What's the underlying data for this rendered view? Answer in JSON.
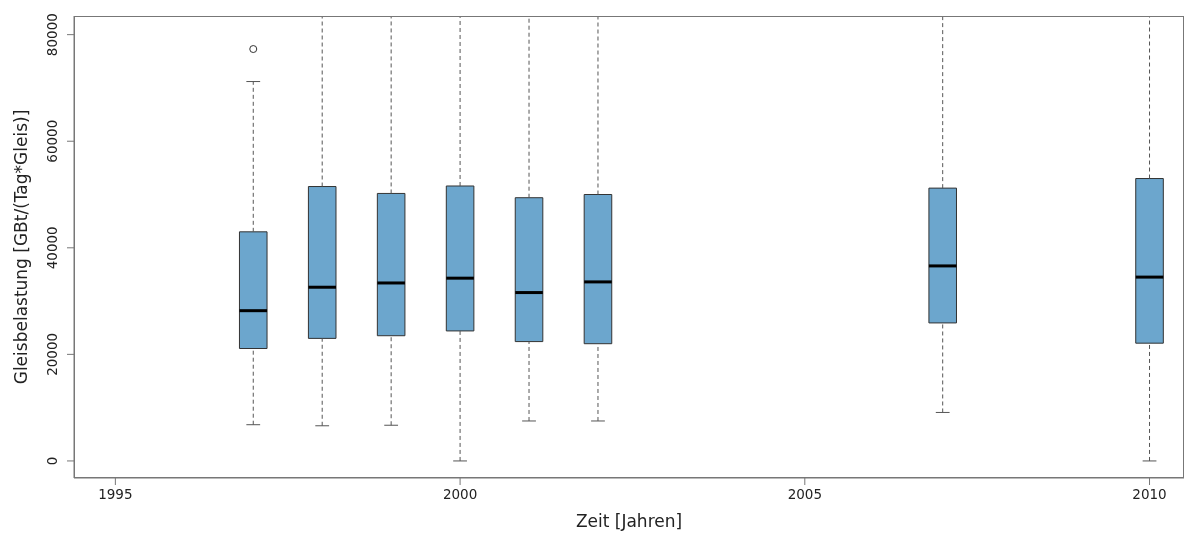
{
  "chart_data": {
    "type": "box",
    "xlabel": "Zeit [Jahren]",
    "ylabel": "Gleisbelastung [GBt/(Tag*Gleis)]",
    "x": [
      1997,
      1998,
      1999,
      2000,
      2001,
      2002,
      2007,
      2010
    ],
    "boxes": [
      {
        "low": 6800,
        "q1": 21100,
        "median": 28200,
        "q3": 43000,
        "high": 71200,
        "outliers": [
          77300
        ]
      },
      {
        "low": 6600,
        "q1": 23000,
        "median": 32600,
        "q3": 51500,
        "high": 83500
      },
      {
        "low": 6700,
        "q1": 23500,
        "median": 33400,
        "q3": 50200,
        "high": 83500
      },
      {
        "low": 0,
        "q1": 24400,
        "median": 34300,
        "q3": 51600,
        "high": 83500
      },
      {
        "low": 7500,
        "q1": 22400,
        "median": 31600,
        "q3": 49400,
        "high": 83500
      },
      {
        "low": 7500,
        "q1": 22000,
        "median": 33600,
        "q3": 50000,
        "high": 83500
      },
      {
        "low": 9100,
        "q1": 25900,
        "median": 36600,
        "q3": 51200,
        "high": 83500
      },
      {
        "low": 0,
        "q1": 22100,
        "median": 34500,
        "q3": 53000,
        "high": 83500
      }
    ],
    "color": "#6ca6cd",
    "xlim": [
      1994.4,
      2010.5
    ],
    "xticks": [
      1995,
      2000,
      2005,
      2010
    ],
    "ylim": [
      -3200,
      83500
    ],
    "yticks": [
      0,
      20000,
      40000,
      60000,
      80000
    ]
  }
}
